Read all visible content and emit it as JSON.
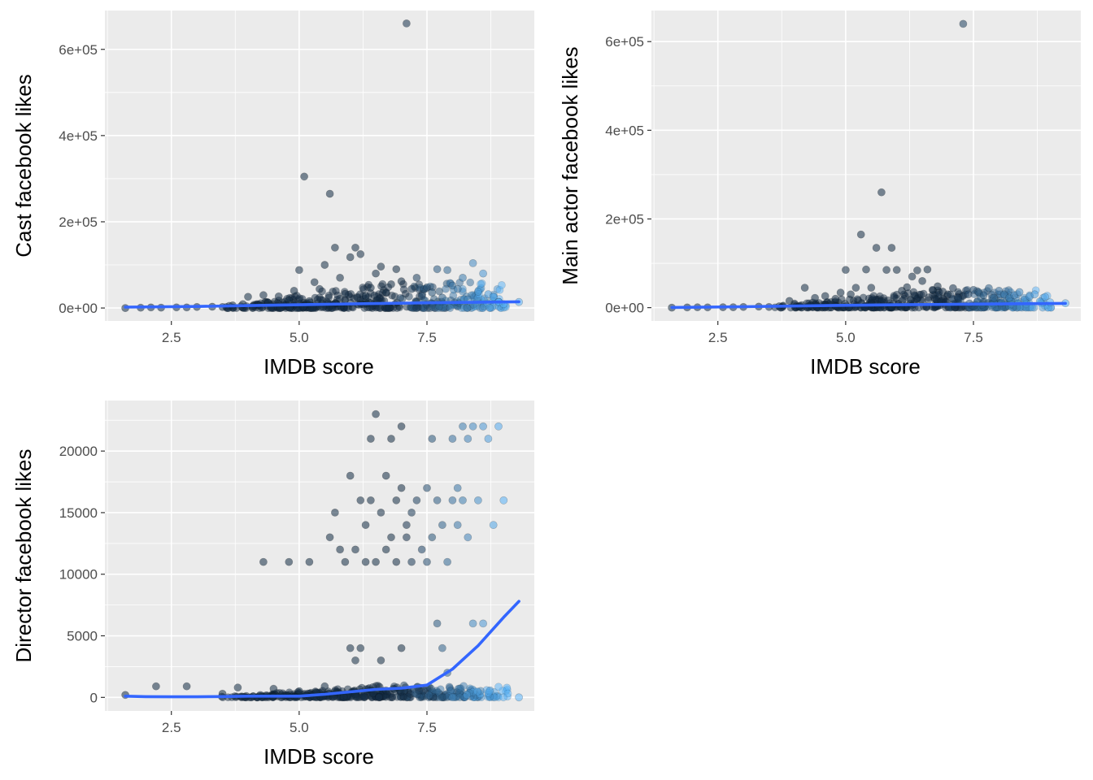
{
  "figure": {
    "background": "#ffffff",
    "panel_background": "#ebebeb",
    "grid_color": "#ffffff",
    "low_color": "#132b43",
    "high_color": "#56b1f7",
    "smooth_color": "#3366ff"
  },
  "chart_data": [
    {
      "type": "scatter",
      "xlabel": "IMDB score",
      "ylabel": "Cast facebook likes",
      "xlim": [
        1.2,
        9.6
      ],
      "ylim": [
        -30000,
        690000
      ],
      "x_ticks": [
        2.5,
        5.0,
        7.5
      ],
      "x_tick_labels": [
        "2.5",
        "5.0",
        "7.5"
      ],
      "y_ticks": [
        0,
        200000,
        400000,
        600000
      ],
      "y_tick_labels": [
        "0e+00",
        "2e+05",
        "4e+05",
        "6e+05"
      ],
      "grid": true,
      "points": [
        [
          1.6,
          0
        ],
        [
          1.9,
          700
        ],
        [
          2.1,
          1200
        ],
        [
          2.3,
          900
        ],
        [
          2.6,
          1500
        ],
        [
          2.8,
          1300
        ],
        [
          3.0,
          2500
        ],
        [
          3.3,
          3000
        ],
        [
          3.5,
          2200
        ],
        [
          3.7,
          6000
        ],
        [
          3.9,
          9000
        ],
        [
          4.0,
          26000
        ],
        [
          4.1,
          4500
        ],
        [
          4.3,
          30000
        ],
        [
          4.4,
          12000
        ],
        [
          4.6,
          27000
        ],
        [
          4.8,
          18000
        ],
        [
          4.9,
          40000
        ],
        [
          5.0,
          88000
        ],
        [
          5.1,
          305000
        ],
        [
          5.2,
          16000
        ],
        [
          5.3,
          60000
        ],
        [
          5.4,
          44000
        ],
        [
          5.5,
          100000
        ],
        [
          5.6,
          265000
        ],
        [
          5.7,
          140000
        ],
        [
          5.8,
          70000
        ],
        [
          5.9,
          33000
        ],
        [
          6.0,
          118000
        ],
        [
          6.1,
          140000
        ],
        [
          6.2,
          125000
        ],
        [
          6.3,
          28000
        ],
        [
          6.4,
          47000
        ],
        [
          6.5,
          80000
        ],
        [
          6.6,
          96000
        ],
        [
          6.7,
          36000
        ],
        [
          6.8,
          55000
        ],
        [
          6.9,
          90000
        ],
        [
          7.0,
          62000
        ],
        [
          7.1,
          660000
        ],
        [
          7.2,
          44000
        ],
        [
          7.3,
          70000
        ],
        [
          7.4,
          28000
        ],
        [
          7.5,
          48000
        ],
        [
          7.6,
          36000
        ],
        [
          7.7,
          90000
        ],
        [
          7.8,
          24000
        ],
        [
          7.9,
          88000
        ],
        [
          8.0,
          52000
        ],
        [
          8.1,
          44000
        ],
        [
          8.2,
          70000
        ],
        [
          8.3,
          20000
        ],
        [
          8.4,
          104000
        ],
        [
          8.5,
          38000
        ],
        [
          8.6,
          80000
        ],
        [
          8.7,
          32000
        ],
        [
          8.8,
          26000
        ],
        [
          8.9,
          14000
        ],
        [
          9.0,
          9000
        ],
        [
          9.3,
          14000
        ]
      ],
      "smooth": {
        "x": [
          1.6,
          3.0,
          4.5,
          6.0,
          7.5,
          9.3
        ],
        "y": [
          2000,
          3500,
          6500,
          9500,
          12000,
          14500
        ]
      }
    },
    {
      "type": "scatter",
      "xlabel": "IMDB score",
      "ylabel": "Main actor facebook likes",
      "xlim": [
        1.2,
        9.6
      ],
      "ylim": [
        -30000,
        670000
      ],
      "x_ticks": [
        2.5,
        5.0,
        7.5
      ],
      "x_tick_labels": [
        "2.5",
        "5.0",
        "7.5"
      ],
      "y_ticks": [
        0,
        200000,
        400000,
        600000
      ],
      "y_tick_labels": [
        "0e+00",
        "2e+05",
        "4e+05",
        "6e+05"
      ],
      "grid": true,
      "points": [
        [
          1.6,
          0
        ],
        [
          1.9,
          500
        ],
        [
          2.1,
          800
        ],
        [
          2.3,
          600
        ],
        [
          2.6,
          1000
        ],
        [
          2.8,
          900
        ],
        [
          3.0,
          1500
        ],
        [
          3.3,
          2200
        ],
        [
          3.5,
          1600
        ],
        [
          3.7,
          3000
        ],
        [
          3.9,
          15000
        ],
        [
          4.0,
          9000
        ],
        [
          4.1,
          4000
        ],
        [
          4.2,
          45000
        ],
        [
          4.4,
          22000
        ],
        [
          4.6,
          26000
        ],
        [
          4.8,
          20000
        ],
        [
          4.9,
          34000
        ],
        [
          5.0,
          85000
        ],
        [
          5.1,
          30000
        ],
        [
          5.2,
          45000
        ],
        [
          5.3,
          165000
        ],
        [
          5.4,
          86000
        ],
        [
          5.5,
          45000
        ],
        [
          5.6,
          135000
        ],
        [
          5.7,
          260000
        ],
        [
          5.8,
          85000
        ],
        [
          5.9,
          135000
        ],
        [
          6.0,
          85000
        ],
        [
          6.1,
          38000
        ],
        [
          6.2,
          46000
        ],
        [
          6.3,
          70000
        ],
        [
          6.4,
          84000
        ],
        [
          6.5,
          60000
        ],
        [
          6.6,
          86000
        ],
        [
          6.7,
          40000
        ],
        [
          6.8,
          48000
        ],
        [
          6.9,
          36000
        ],
        [
          7.0,
          30000
        ],
        [
          7.1,
          44000
        ],
        [
          7.2,
          22000
        ],
        [
          7.3,
          640000
        ],
        [
          7.4,
          30000
        ],
        [
          7.5,
          40000
        ],
        [
          7.6,
          35000
        ],
        [
          7.7,
          28000
        ],
        [
          7.8,
          44000
        ],
        [
          7.9,
          22000
        ],
        [
          8.0,
          38000
        ],
        [
          8.1,
          30000
        ],
        [
          8.2,
          22000
        ],
        [
          8.3,
          28000
        ],
        [
          8.4,
          35000
        ],
        [
          8.5,
          18000
        ],
        [
          8.6,
          25000
        ],
        [
          8.7,
          30000
        ],
        [
          8.8,
          14000
        ],
        [
          8.9,
          24000
        ],
        [
          9.0,
          12000
        ],
        [
          9.3,
          10000
        ]
      ],
      "smooth": {
        "x": [
          1.6,
          3.0,
          4.5,
          6.0,
          7.5,
          9.3
        ],
        "y": [
          500,
          2000,
          4500,
          6500,
          8000,
          9500
        ]
      }
    },
    {
      "type": "scatter",
      "xlabel": "IMDB score",
      "ylabel": "Director facebook likes",
      "xlim": [
        1.2,
        9.6
      ],
      "ylim": [
        -1100,
        24100
      ],
      "x_ticks": [
        2.5,
        5.0,
        7.5
      ],
      "x_tick_labels": [
        "2.5",
        "5.0",
        "7.5"
      ],
      "y_ticks": [
        0,
        5000,
        10000,
        15000,
        20000
      ],
      "y_tick_labels": [
        "0",
        "5000",
        "10000",
        "15000",
        "20000"
      ],
      "grid": true,
      "points": [
        [
          1.6,
          200
        ],
        [
          2.2,
          900
        ],
        [
          2.8,
          900
        ],
        [
          3.5,
          300
        ],
        [
          3.8,
          800
        ],
        [
          4.3,
          11000
        ],
        [
          4.5,
          700
        ],
        [
          4.8,
          11000
        ],
        [
          5.0,
          500
        ],
        [
          5.2,
          11000
        ],
        [
          5.5,
          900
        ],
        [
          5.6,
          13000
        ],
        [
          5.7,
          15000
        ],
        [
          5.8,
          12000
        ],
        [
          5.9,
          11000
        ],
        [
          6.0,
          18000
        ],
        [
          6.0,
          4000
        ],
        [
          6.1,
          12000
        ],
        [
          6.1,
          3000
        ],
        [
          6.2,
          16000
        ],
        [
          6.2,
          4000
        ],
        [
          6.3,
          11000
        ],
        [
          6.3,
          14000
        ],
        [
          6.4,
          21000
        ],
        [
          6.4,
          16000
        ],
        [
          6.5,
          23000
        ],
        [
          6.5,
          11000
        ],
        [
          6.6,
          15000
        ],
        [
          6.6,
          3000
        ],
        [
          6.7,
          18000
        ],
        [
          6.7,
          12000
        ],
        [
          6.8,
          21000
        ],
        [
          6.8,
          13000
        ],
        [
          6.9,
          16000
        ],
        [
          6.9,
          11000
        ],
        [
          7.0,
          17000
        ],
        [
          7.0,
          22000
        ],
        [
          7.0,
          4000
        ],
        [
          7.1,
          13000
        ],
        [
          7.1,
          14000
        ],
        [
          7.2,
          11000
        ],
        [
          7.2,
          15000
        ],
        [
          7.3,
          16000
        ],
        [
          7.4,
          12000
        ],
        [
          7.5,
          17000
        ],
        [
          7.5,
          11000
        ],
        [
          7.6,
          21000
        ],
        [
          7.6,
          13000
        ],
        [
          7.7,
          16000
        ],
        [
          7.7,
          6000
        ],
        [
          7.8,
          14000
        ],
        [
          7.8,
          4000
        ],
        [
          7.9,
          11000
        ],
        [
          7.9,
          2000
        ],
        [
          8.0,
          16000
        ],
        [
          8.0,
          21000
        ],
        [
          8.1,
          17000
        ],
        [
          8.1,
          14000
        ],
        [
          8.2,
          22000
        ],
        [
          8.2,
          16000
        ],
        [
          8.3,
          13000
        ],
        [
          8.3,
          21000
        ],
        [
          8.4,
          22000
        ],
        [
          8.4,
          6000
        ],
        [
          8.5,
          16000
        ],
        [
          8.6,
          22000
        ],
        [
          8.6,
          6000
        ],
        [
          8.7,
          21000
        ],
        [
          8.8,
          14000
        ],
        [
          8.9,
          22000
        ],
        [
          9.0,
          16000
        ],
        [
          9.3,
          0
        ]
      ],
      "smooth": {
        "x": [
          1.6,
          2.0,
          2.5,
          3.0,
          3.5,
          4.0,
          4.5,
          5.0,
          5.5,
          6.0,
          6.5,
          7.0,
          7.5,
          8.0,
          8.5,
          9.0,
          9.3
        ],
        "y": [
          100,
          60,
          50,
          50,
          70,
          100,
          100,
          100,
          250,
          450,
          650,
          750,
          1000,
          2300,
          4200,
          6500,
          7800
        ]
      }
    }
  ]
}
